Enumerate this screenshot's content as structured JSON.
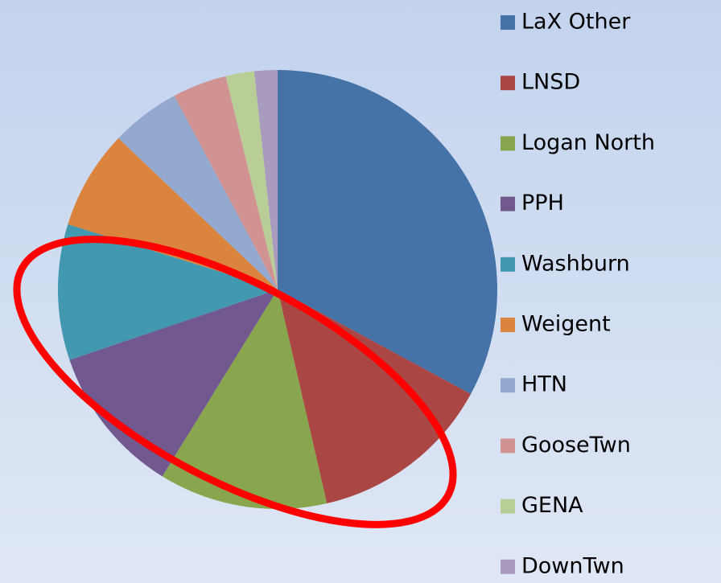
{
  "chart_data": {
    "type": "pie",
    "categories": [
      "LaX Other",
      "LNSD",
      "Logan North",
      "PPH",
      "Washburn",
      "Weigent",
      "HTN",
      "GooseTwn",
      "GENA",
      "DownTwn"
    ],
    "values": [
      32.9,
      13.5,
      12.4,
      11,
      10,
      7.3,
      5.1,
      4,
      2.1,
      1.7
    ],
    "colors": [
      "#4572a7",
      "#aa4643",
      "#89a54e",
      "#71588f",
      "#4198af",
      "#db843d",
      "#93a9cf",
      "#d19392",
      "#b9cd96",
      "#a99bbd"
    ],
    "legend": "right"
  }
}
